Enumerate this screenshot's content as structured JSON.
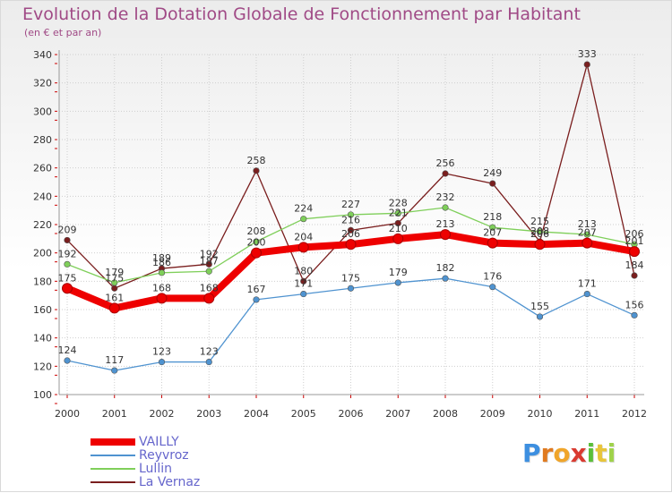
{
  "header": {
    "title": "Evolution de la Dotation Globale de Fonctionnement par Habitant",
    "subtitle": "(en € et par an)"
  },
  "chart_data": {
    "type": "line",
    "title": "Evolution de la Dotation Globale de Fonctionnement par Habitant",
    "ylabel": "(en € et par an)",
    "xlabel": "",
    "x": [
      "2000",
      "2001",
      "2002",
      "2003",
      "2004",
      "2005",
      "2006",
      "2007",
      "2008",
      "2009",
      "2010",
      "2011",
      "2012"
    ],
    "ylim": [
      100,
      340
    ],
    "yticks": [
      100,
      120,
      140,
      160,
      180,
      200,
      220,
      240,
      260,
      280,
      300,
      320,
      340
    ],
    "grid": true,
    "legend_position": "bottom-left",
    "series": [
      {
        "name": "La Vernaz",
        "color": "#7a1e1e",
        "values": [
          209,
          175,
          189,
          192,
          258,
          180,
          216,
          221,
          256,
          249,
          208,
          333,
          184
        ],
        "labels": [
          "209",
          "175",
          "189",
          "192",
          "258",
          "180",
          "216",
          "221",
          "256",
          "249",
          "208",
          "333",
          "184"
        ]
      },
      {
        "name": "Lullin",
        "color": "#7fcf5a",
        "values": [
          192,
          179,
          186,
          187,
          208,
          224,
          227,
          228,
          232,
          218,
          215,
          213,
          206
        ],
        "labels": [
          "192",
          "179",
          "186",
          "187",
          "208",
          "224",
          "227",
          "228",
          "232",
          "218",
          "215",
          "213",
          "206"
        ]
      },
      {
        "name": "Reyvroz",
        "color": "#4f93d0",
        "values": [
          124,
          117,
          123,
          123,
          167,
          171,
          175,
          179,
          182,
          176,
          155,
          171,
          156
        ],
        "labels": [
          "124",
          "117",
          "123",
          "123",
          "167",
          "171",
          "175",
          "179",
          "182",
          "176",
          "155",
          "171",
          "156"
        ]
      },
      {
        "name": "VAILLY",
        "color": "#ee0000",
        "values": [
          175,
          161,
          168,
          168,
          200,
          204,
          206,
          210,
          213,
          207,
          206,
          207,
          201
        ],
        "labels": [
          "175",
          "161",
          "168",
          "168",
          "200",
          "204",
          "206",
          "210",
          "213",
          "207",
          "206",
          "207",
          "201"
        ]
      }
    ]
  },
  "legend": {
    "items": [
      {
        "label": "VAILLY",
        "color": "#ee0000"
      },
      {
        "label": "Reyvroz",
        "color": "#4f93d0"
      },
      {
        "label": "Lullin",
        "color": "#7fcf5a"
      },
      {
        "label": "La Vernaz",
        "color": "#7a1e1e"
      }
    ]
  },
  "logo": {
    "text": "Proxiti",
    "letters": [
      {
        "ch": "P",
        "color": "#3d8fe0"
      },
      {
        "ch": "r",
        "color": "#e07a1f"
      },
      {
        "ch": "o",
        "color": "#f0a52a"
      },
      {
        "ch": "x",
        "color": "#d93a30"
      },
      {
        "ch": "i",
        "color": "#5bbf3a"
      },
      {
        "ch": "t",
        "color": "#e8c53a"
      },
      {
        "ch": "i",
        "color": "#9fd24a"
      }
    ]
  }
}
